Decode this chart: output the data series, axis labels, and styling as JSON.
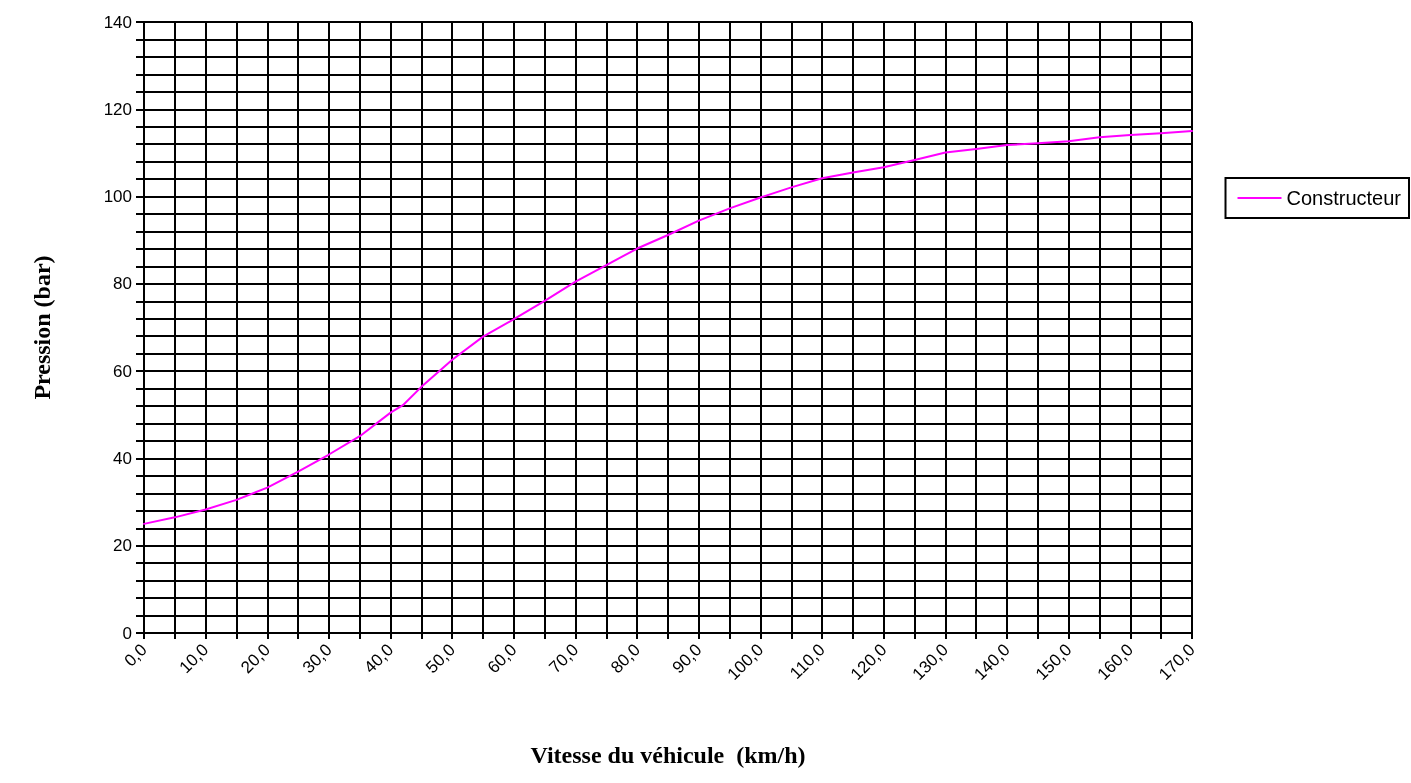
{
  "chart_data": {
    "type": "line",
    "xlabel": "Vitesse du véhicule  (km/h)",
    "ylabel": "Pression (bar)",
    "x": [
      0,
      5,
      10,
      15,
      20,
      25,
      30,
      35,
      40,
      42,
      45,
      50,
      55,
      60,
      65,
      70,
      75,
      80,
      85,
      90,
      95,
      100,
      105,
      110,
      115,
      120,
      125,
      130,
      135,
      140,
      145,
      150,
      155,
      160,
      165,
      170
    ],
    "series": [
      {
        "name": "Constructeur",
        "color": "#ff00ff",
        "values": [
          25.0,
          26.5,
          28.3,
          30.5,
          33.3,
          37.0,
          40.9,
          45.1,
          50.5,
          52.2,
          56.4,
          62.6,
          67.9,
          71.9,
          76.1,
          80.5,
          84.3,
          88.1,
          91.2,
          94.5,
          97.3,
          99.8,
          102.1,
          104.2,
          105.5,
          106.7,
          108.4,
          110.1,
          110.9,
          111.8,
          112.2,
          112.7,
          113.6,
          114.1,
          114.5,
          115.0
        ]
      }
    ],
    "xlim": [
      0,
      170
    ],
    "xticks": [
      {
        "value": 0,
        "label": "0,0"
      },
      {
        "value": 5,
        "label": null
      },
      {
        "value": 10,
        "label": "10,0"
      },
      {
        "value": 15,
        "label": null
      },
      {
        "value": 20,
        "label": "20,0"
      },
      {
        "value": 25,
        "label": null
      },
      {
        "value": 30,
        "label": "30,0"
      },
      {
        "value": 35,
        "label": null
      },
      {
        "value": 40,
        "label": "40,0"
      },
      {
        "value": 45,
        "label": null
      },
      {
        "value": 50,
        "label": "50,0"
      },
      {
        "value": 55,
        "label": null
      },
      {
        "value": 60,
        "label": "60,0"
      },
      {
        "value": 65,
        "label": null
      },
      {
        "value": 70,
        "label": "70,0"
      },
      {
        "value": 75,
        "label": null
      },
      {
        "value": 80,
        "label": "80,0"
      },
      {
        "value": 85,
        "label": null
      },
      {
        "value": 90,
        "label": "90,0"
      },
      {
        "value": 95,
        "label": null
      },
      {
        "value": 100,
        "label": "100,0"
      },
      {
        "value": 105,
        "label": null
      },
      {
        "value": 110,
        "label": "110,0"
      },
      {
        "value": 115,
        "label": null
      },
      {
        "value": 120,
        "label": "120,0"
      },
      {
        "value": 125,
        "label": null
      },
      {
        "value": 130,
        "label": "130,0"
      },
      {
        "value": 135,
        "label": null
      },
      {
        "value": 140,
        "label": "140,0"
      },
      {
        "value": 145,
        "label": null
      },
      {
        "value": 150,
        "label": "150,0"
      },
      {
        "value": 155,
        "label": null
      },
      {
        "value": 160,
        "label": "160,0"
      },
      {
        "value": 165,
        "label": null
      },
      {
        "value": 170,
        "label": "170,0"
      }
    ],
    "ylim": [
      0,
      140
    ],
    "yticks": [
      0,
      {
        "value": 4,
        "label": null
      },
      {
        "value": 8,
        "label": null
      },
      {
        "value": 12,
        "label": null
      },
      {
        "value": 16,
        "label": null
      },
      20,
      {
        "value": 24,
        "label": null
      },
      {
        "value": 28,
        "label": null
      },
      {
        "value": 32,
        "label": null
      },
      {
        "value": 36,
        "label": null
      },
      40,
      {
        "value": 44,
        "label": null
      },
      {
        "value": 48,
        "label": null
      },
      {
        "value": 52,
        "label": null
      },
      {
        "value": 56,
        "label": null
      },
      60,
      {
        "value": 64,
        "label": null
      },
      {
        "value": 68,
        "label": null
      },
      {
        "value": 72,
        "label": null
      },
      {
        "value": 76,
        "label": null
      },
      80,
      {
        "value": 84,
        "label": null
      },
      {
        "value": 88,
        "label": null
      },
      {
        "value": 92,
        "label": null
      },
      {
        "value": 96,
        "label": null
      },
      100,
      {
        "value": 104,
        "label": null
      },
      {
        "value": 108,
        "label": null
      },
      {
        "value": 112,
        "label": null
      },
      {
        "value": 116,
        "label": null
      },
      120,
      {
        "value": 124,
        "label": null
      },
      {
        "value": 128,
        "label": null
      },
      {
        "value": 132,
        "label": null
      },
      {
        "value": 136,
        "label": null
      },
      140
    ],
    "grid": true,
    "legend": "right",
    "marker": "none",
    "line_style": "solid"
  }
}
